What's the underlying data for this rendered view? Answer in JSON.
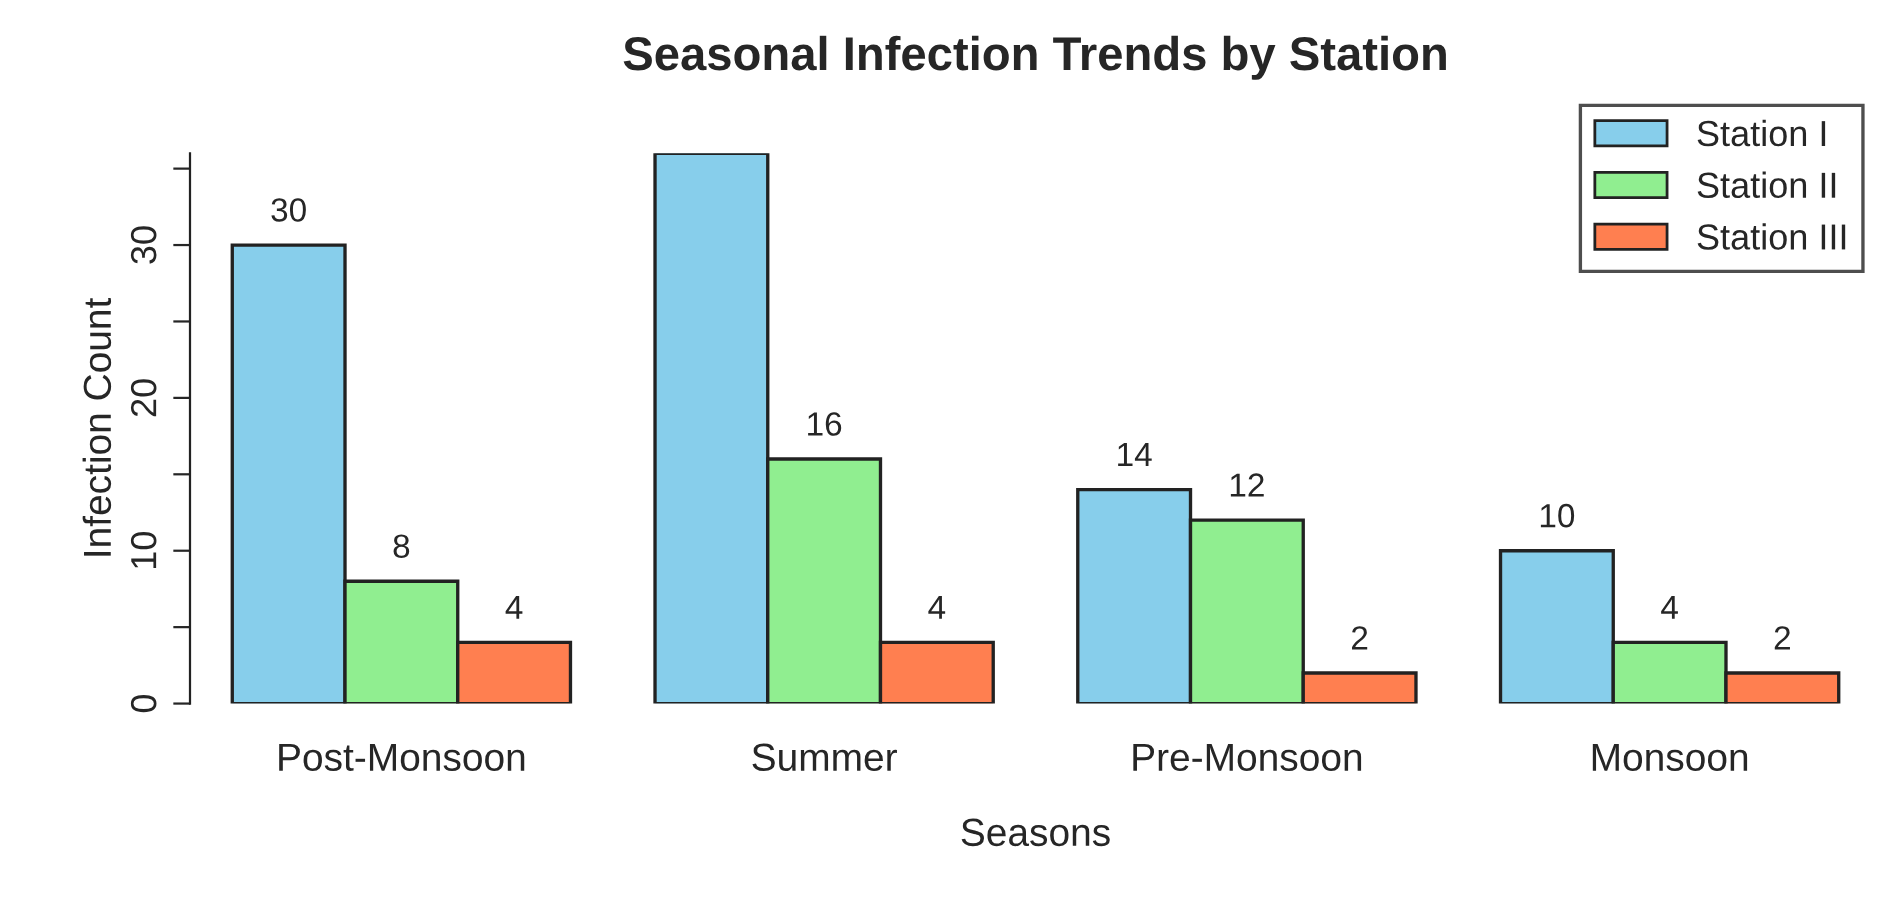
{
  "chart_data": {
    "type": "bar",
    "title": "Seasonal Infection Trends by Station",
    "xlabel": "Seasons",
    "ylabel": "Infection Count",
    "categories": [
      "Post-Monsoon",
      "Summer",
      "Pre-Monsoon",
      "Monsoon"
    ],
    "series": [
      {
        "name": "Station I",
        "color": "#87ceeb",
        "values": [
          30,
          36,
          14,
          10
        ],
        "value_labels": [
          "30",
          null,
          "14",
          "10"
        ]
      },
      {
        "name": "Station II",
        "color": "#90ee90",
        "values": [
          8,
          16,
          12,
          4
        ],
        "value_labels": [
          "8",
          "16",
          "12",
          "4"
        ]
      },
      {
        "name": "Station III",
        "color": "#ff7f50",
        "values": [
          4,
          4,
          2,
          2
        ],
        "value_labels": [
          "4",
          "4",
          "2",
          "2"
        ]
      }
    ],
    "ylim": [
      0,
      36
    ],
    "yticks": [
      0,
      {
        "value": 5,
        "label": null
      },
      10,
      {
        "value": 15,
        "label": null
      },
      20,
      {
        "value": 25,
        "label": null
      },
      30,
      {
        "value": 35,
        "label": null
      }
    ],
    "legend": "top right",
    "grid": false
  }
}
